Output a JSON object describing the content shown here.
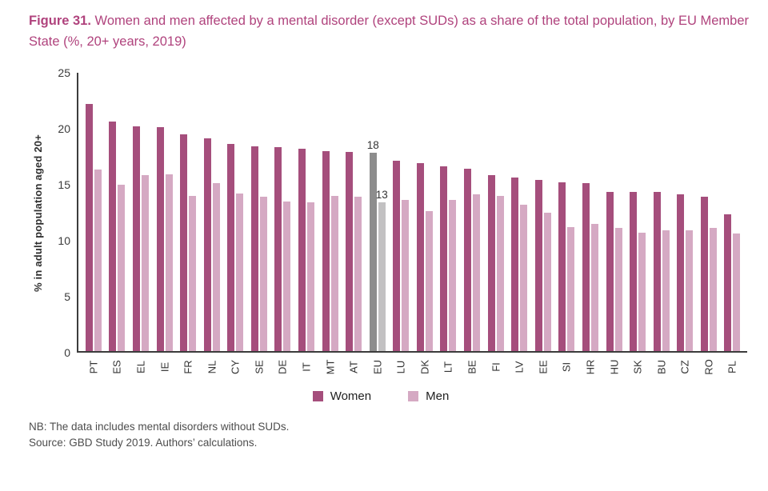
{
  "title": {
    "prefix": "Figure 31.",
    "text": " Women and men affected by a mental disorder (except SUDs) as a share of the total population, by EU Member State (%, 20+ years, 2019)"
  },
  "colors": {
    "title": "#b0437d",
    "women": "#a54e7c",
    "men": "#d5a9c3",
    "eu_women": "#8d8d8d",
    "eu_men": "#c2c1c2",
    "axis": "#3c3c3c"
  },
  "chart_data": {
    "type": "bar",
    "title": "Women and men affected by a mental disorder (except SUDs) as a share of the total population, by EU Member State (%, 20+ years, 2019)",
    "xlabel": "",
    "ylabel": "% in adult population aged 20+",
    "ylim": [
      0,
      25
    ],
    "yticks": [
      0,
      5,
      10,
      15,
      20,
      25
    ],
    "grid": false,
    "legend_position": "bottom",
    "categories": [
      "PT",
      "ES",
      "EL",
      "IE",
      "FR",
      "NL",
      "CY",
      "SE",
      "DE",
      "IT",
      "MT",
      "AT",
      "EU",
      "LU",
      "DK",
      "LT",
      "BE",
      "FI",
      "LV",
      "EE",
      "SI",
      "HR",
      "HU",
      "SK",
      "BU",
      "CZ",
      "RO",
      "PL"
    ],
    "series": [
      {
        "name": "Women",
        "color": "#a54e7c",
        "values": [
          22.1,
          20.5,
          20.1,
          20.0,
          19.4,
          19.0,
          18.5,
          18.3,
          18.2,
          18.1,
          17.9,
          17.8,
          17.7,
          17.0,
          16.8,
          16.5,
          16.3,
          15.7,
          15.5,
          15.3,
          15.1,
          15.0,
          14.2,
          14.2,
          14.2,
          14.0,
          13.8,
          12.2
        ]
      },
      {
        "name": "Men",
        "color": "#d5a9c3",
        "values": [
          16.2,
          14.9,
          15.7,
          15.8,
          13.9,
          15.0,
          14.1,
          13.8,
          13.4,
          13.3,
          13.9,
          13.8,
          13.3,
          13.5,
          12.5,
          13.5,
          14.0,
          13.9,
          13.1,
          12.4,
          11.1,
          11.4,
          11.0,
          10.6,
          10.8,
          10.8,
          11.0,
          10.5
        ]
      }
    ],
    "highlight": {
      "category": "EU",
      "series_colors": {
        "Women": "#8d8d8d",
        "Men": "#c2c1c2"
      }
    },
    "annotations": [
      {
        "category": "EU",
        "series": "Women",
        "text": "18"
      },
      {
        "category": "EU",
        "series": "Men",
        "text": "13"
      }
    ]
  },
  "notes": {
    "nb": "NB: The data includes mental disorders without SUDs.",
    "source": "Source: GBD Study 2019. Authors’ calculations."
  }
}
